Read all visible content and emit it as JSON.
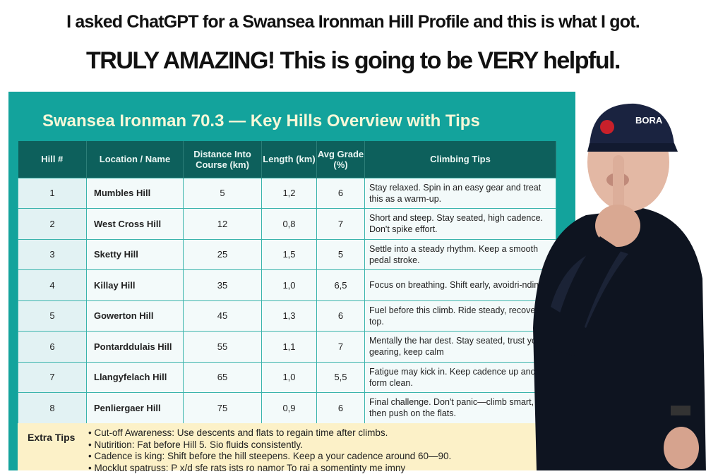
{
  "caption": {
    "line1": "I asked ChatGPT for a Swansea Ironman Hill Profile and this is what I got.",
    "line2": "TRULY AMAZING! This is going to be VERY helpful."
  },
  "panel": {
    "title": "Swansea Ironman 70.3 — Key Hills Overview with Tips"
  },
  "table": {
    "headers": [
      "Hill #",
      "Location / Name",
      "Distance Into Course (km)",
      "Length (km)",
      "Avg Grade (%)",
      "Climbing Tips"
    ],
    "rows": [
      [
        "1",
        "Mumbles Hill",
        "5",
        "1,2",
        "6",
        "Stay relaxed. Spin in an easy gear and treat this as a warm-up."
      ],
      [
        "2",
        "West Cross Hill",
        "12",
        "0,8",
        "7",
        "Short and steep. Stay seated, high cadence. Don't spike effort."
      ],
      [
        "3",
        "Sketty Hill",
        "25",
        "1,5",
        "5",
        "Settle into a steady rhythm. Keep a smooth pedal stroke."
      ],
      [
        "4",
        "Killay Hill",
        "35",
        "1,0",
        "6,5",
        "Focus on breathing. Shift early, avoidri-nding."
      ],
      [
        "5",
        "Gowerton Hill",
        "45",
        "1,3",
        "6",
        "Fuel before this climb. Ride steady, recover on top."
      ],
      [
        "6",
        "Pontarddulais Hill",
        "55",
        "1,1",
        "7",
        "Mentally the har dest. Stay seated, trust your gearing, keep calm"
      ],
      [
        "7",
        "Llangyfelach Hill",
        "65",
        "1,0",
        "5,5",
        "Fatigue may kick in. Keep cadence up and form clean."
      ],
      [
        "8",
        "Penliergaer Hill",
        "75",
        "0,9",
        "6",
        "Final challenge. Don't panic—climb smart, then push on the flats."
      ]
    ]
  },
  "extra": {
    "label": "Extra Tips",
    "tips": [
      "Cut-off Awareness: Use descents and flats to regain time after climbs.",
      "Nutirition: Fat before Hill 5. Sio fluids consistently.",
      "Cadence is king: Shift before the hill steepens. Keep a your cadence around 60—90.",
      "Mocklut spatruss: P x/d sfe rats ists ro namor To rai a somentinty me imny"
    ]
  },
  "photo": {
    "cap_text": "BORA"
  }
}
